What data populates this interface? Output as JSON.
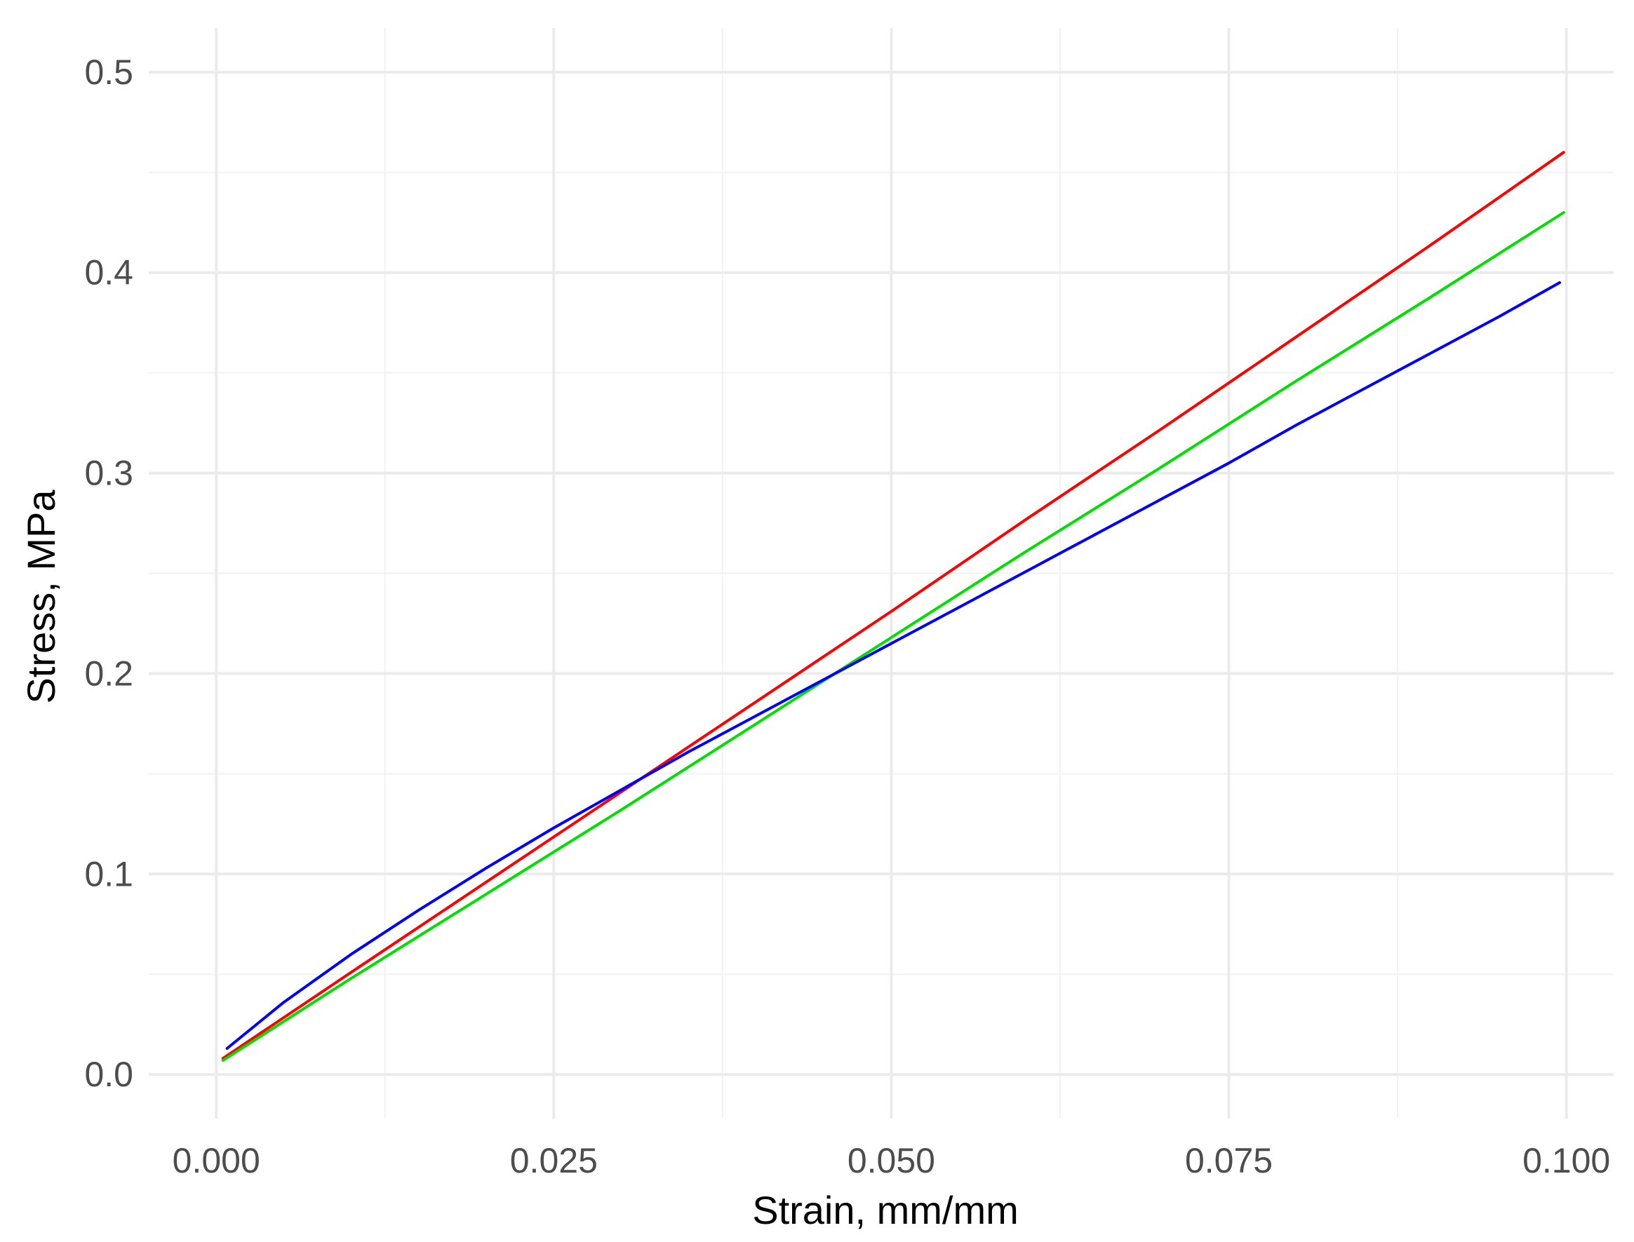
{
  "chart_data": {
    "type": "line",
    "title": "",
    "xlabel": "Strain, mm/mm",
    "ylabel": "Stress, MPa",
    "xlim": [
      -0.005,
      0.1035
    ],
    "ylim": [
      -0.022,
      0.522
    ],
    "x_ticks": [
      "0.000",
      "0.025",
      "0.050",
      "0.075",
      "0.100"
    ],
    "y_ticks": [
      "0.0",
      "0.1",
      "0.2",
      "0.3",
      "0.4",
      "0.5"
    ],
    "grid": true,
    "legend": "none",
    "series": [
      {
        "color": "#ff0000",
        "x": [
          0.0005,
          0.01,
          0.02,
          0.03,
          0.04,
          0.05,
          0.06,
          0.07,
          0.08,
          0.09,
          0.0998
        ],
        "y": [
          0.008,
          0.051,
          0.096,
          0.141,
          0.186,
          0.231,
          0.277,
          0.322,
          0.368,
          0.414,
          0.46
        ]
      },
      {
        "color": "#00e000",
        "x": [
          0.0005,
          0.01,
          0.02,
          0.03,
          0.04,
          0.05,
          0.06,
          0.07,
          0.08,
          0.09,
          0.0998
        ],
        "y": [
          0.007,
          0.048,
          0.09,
          0.132,
          0.175,
          0.218,
          0.261,
          0.303,
          0.346,
          0.388,
          0.43
        ]
      },
      {
        "color": "#0000ff",
        "x": [
          0.0008,
          0.005,
          0.01,
          0.015,
          0.02,
          0.025,
          0.03,
          0.035,
          0.04,
          0.045,
          0.05,
          0.055,
          0.06,
          0.065,
          0.07,
          0.075,
          0.08,
          0.085,
          0.09,
          0.095,
          0.0995
        ],
        "y": [
          0.013,
          0.036,
          0.06,
          0.082,
          0.103,
          0.123,
          0.142,
          0.161,
          0.179,
          0.197,
          0.215,
          0.233,
          0.251,
          0.269,
          0.287,
          0.305,
          0.324,
          0.342,
          0.36,
          0.378,
          0.395
        ]
      }
    ]
  }
}
